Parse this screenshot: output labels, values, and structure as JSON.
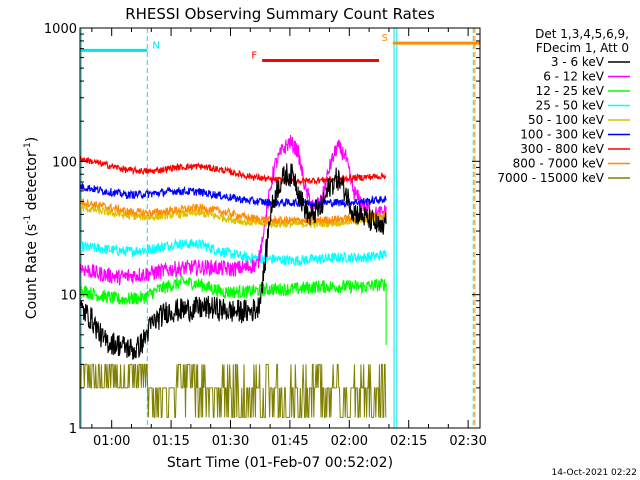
{
  "chart_data": {
    "type": "line",
    "title": "RHESSI Observing Summary Count Rates",
    "xlabel": "Start Time (01-Feb-07 00:52:02)",
    "ylabel_main": "Count Rate (s",
    "ylabel_sup1": "-1",
    "ylabel_mid": " detector",
    "ylabel_sup2": "-1",
    "ylabel_end": ")",
    "yscale": "log",
    "ylim": [
      1,
      1000
    ],
    "xlim_minutes": [
      52.0,
      153.0
    ],
    "x_ticks": [
      {
        "minute": 60,
        "label": "01:00"
      },
      {
        "minute": 75,
        "label": "01:15"
      },
      {
        "minute": 90,
        "label": "01:30"
      },
      {
        "minute": 105,
        "label": "01:45"
      },
      {
        "minute": 120,
        "label": "02:00"
      },
      {
        "minute": 135,
        "label": "02:15"
      },
      {
        "minute": 150,
        "label": "02:30"
      }
    ],
    "y_ticks": [
      {
        "value": 1,
        "label": "1"
      },
      {
        "value": 10,
        "label": "10"
      },
      {
        "value": 100,
        "label": "100"
      },
      {
        "value": 1000,
        "label": "1000"
      }
    ],
    "legend": {
      "header1": "Det 1,3,4,5,6,9,",
      "header2": "FDecim 1, Att 0",
      "placement": "right"
    },
    "annotations": [
      {
        "label": "N",
        "start": 52.0,
        "end": 69.0,
        "color": "#00e5e5",
        "level": 680
      },
      {
        "label": "F",
        "start": 98.0,
        "end": 127.5,
        "color": "#ff0000",
        "level": 570
      },
      {
        "label": "S",
        "start": 131.0,
        "end": 153.0,
        "color": "#ff8c00",
        "level": 770
      }
    ],
    "vertical_lines": [
      {
        "minute": 52.3,
        "color": "#00e5e5",
        "style": "solid"
      },
      {
        "minute": 69.0,
        "color": "#00e5e5",
        "style": "dashed"
      },
      {
        "minute": 131.3,
        "color": "#00e5e5",
        "style": "solid"
      },
      {
        "minute": 132.0,
        "color": "#00e5e5",
        "style": "solid"
      },
      {
        "minute": 151.3,
        "color": "#00e5e5",
        "style": "dashed"
      },
      {
        "minute": 151.7,
        "color": "#ff8c00",
        "style": "dashed"
      }
    ],
    "series": [
      {
        "name": "3 - 6 keV",
        "color": "#000000",
        "end": 129.3,
        "noise": 0.09,
        "points": [
          [
            52,
            8
          ],
          [
            55,
            6.5
          ],
          [
            58,
            4.5
          ],
          [
            62,
            4.2
          ],
          [
            66,
            3.8
          ],
          [
            68,
            4.5
          ],
          [
            70,
            6
          ],
          [
            74,
            7.5
          ],
          [
            80,
            7.8
          ],
          [
            85,
            8
          ],
          [
            90,
            7.5
          ],
          [
            95,
            7.5
          ],
          [
            97,
            8
          ],
          [
            98.5,
            15
          ],
          [
            100,
            40
          ],
          [
            102,
            65
          ],
          [
            104,
            80
          ],
          [
            106,
            78
          ],
          [
            108,
            50
          ],
          [
            110,
            38
          ],
          [
            113,
            45
          ],
          [
            115,
            65
          ],
          [
            117,
            75
          ],
          [
            119,
            60
          ],
          [
            121,
            42
          ],
          [
            124,
            38
          ],
          [
            126,
            35
          ],
          [
            127.5,
            32
          ],
          [
            128.5,
            30
          ],
          [
            129.3,
            40
          ]
        ]
      },
      {
        "name": "6 - 12 keV",
        "color": "#ff00ff",
        "end": 129.3,
        "noise": 0.06,
        "points": [
          [
            52,
            16
          ],
          [
            56,
            14.5
          ],
          [
            62,
            13.5
          ],
          [
            66,
            14
          ],
          [
            70,
            14.5
          ],
          [
            75,
            15.5
          ],
          [
            80,
            16
          ],
          [
            85,
            16
          ],
          [
            90,
            15.5
          ],
          [
            94,
            16
          ],
          [
            97,
            17
          ],
          [
            99,
            40
          ],
          [
            101,
            90
          ],
          [
            103,
            120
          ],
          [
            105,
            140
          ],
          [
            107,
            120
          ],
          [
            109,
            60
          ],
          [
            111,
            45
          ],
          [
            113,
            50
          ],
          [
            115,
            90
          ],
          [
            117,
            130
          ],
          [
            119,
            110
          ],
          [
            121,
            60
          ],
          [
            124,
            45
          ],
          [
            127,
            40
          ],
          [
            129.3,
            42
          ]
        ]
      },
      {
        "name": "12 - 25 keV",
        "color": "#00ff00",
        "end": 129.3,
        "noise": 0.05,
        "tail": [
          [
            129.3,
            4.2
          ]
        ],
        "points": [
          [
            52,
            11
          ],
          [
            56,
            10
          ],
          [
            62,
            9.2
          ],
          [
            68,
            9.5
          ],
          [
            72,
            11
          ],
          [
            78,
            12.5
          ],
          [
            82,
            12
          ],
          [
            88,
            10.5
          ],
          [
            94,
            10.5
          ],
          [
            100,
            11
          ],
          [
            106,
            11
          ],
          [
            112,
            11.5
          ],
          [
            118,
            11.5
          ],
          [
            124,
            11.5
          ],
          [
            129.3,
            12
          ]
        ]
      },
      {
        "name": "25 - 50 keV",
        "color": "#00ffff",
        "end": 129.3,
        "noise": 0.04,
        "points": [
          [
            52,
            23
          ],
          [
            58,
            22
          ],
          [
            64,
            21
          ],
          [
            70,
            22
          ],
          [
            76,
            24
          ],
          [
            82,
            24
          ],
          [
            88,
            21
          ],
          [
            94,
            19
          ],
          [
            100,
            18.5
          ],
          [
            106,
            18
          ],
          [
            112,
            18.5
          ],
          [
            118,
            19
          ],
          [
            124,
            19
          ],
          [
            129.3,
            20
          ]
        ]
      },
      {
        "name": "50 - 100 keV",
        "color": "#e0c000",
        "end": 129.3,
        "noise": 0.03,
        "points": [
          [
            52,
            45
          ],
          [
            58,
            42
          ],
          [
            64,
            39
          ],
          [
            70,
            38
          ],
          [
            76,
            40
          ],
          [
            82,
            41
          ],
          [
            88,
            38
          ],
          [
            94,
            35
          ],
          [
            100,
            34
          ],
          [
            106,
            34
          ],
          [
            112,
            34
          ],
          [
            118,
            35
          ],
          [
            124,
            36
          ],
          [
            129.3,
            38
          ]
        ]
      },
      {
        "name": "100 - 300 keV",
        "color": "#0000ff",
        "end": 129.3,
        "noise": 0.03,
        "points": [
          [
            52,
            65
          ],
          [
            58,
            60
          ],
          [
            64,
            56
          ],
          [
            70,
            57
          ],
          [
            76,
            60
          ],
          [
            82,
            59
          ],
          [
            88,
            55
          ],
          [
            94,
            51
          ],
          [
            100,
            49
          ],
          [
            106,
            49
          ],
          [
            112,
            49
          ],
          [
            118,
            49
          ],
          [
            124,
            50
          ],
          [
            129.3,
            52
          ]
        ]
      },
      {
        "name": "300 - 800 keV",
        "color": "#ff0000",
        "end": 129.3,
        "noise": 0.025,
        "points": [
          [
            52,
            105
          ],
          [
            58,
            95
          ],
          [
            64,
            86
          ],
          [
            70,
            84
          ],
          [
            76,
            90
          ],
          [
            82,
            92
          ],
          [
            88,
            86
          ],
          [
            94,
            78
          ],
          [
            100,
            73
          ],
          [
            106,
            71
          ],
          [
            112,
            72
          ],
          [
            118,
            74
          ],
          [
            124,
            76
          ],
          [
            129.3,
            78
          ]
        ]
      },
      {
        "name": "800 - 7000 keV",
        "color": "#ff8c00",
        "end": 129.3,
        "noise": 0.03,
        "points": [
          [
            52,
            50
          ],
          [
            58,
            46
          ],
          [
            64,
            42
          ],
          [
            70,
            41
          ],
          [
            76,
            43
          ],
          [
            82,
            45
          ],
          [
            88,
            42
          ],
          [
            94,
            38
          ],
          [
            100,
            36
          ],
          [
            106,
            36
          ],
          [
            112,
            36
          ],
          [
            118,
            37
          ],
          [
            124,
            38
          ],
          [
            129.3,
            40
          ]
        ]
      },
      {
        "name": "7000 - 15000 keV",
        "color": "#808000",
        "end": 129.3,
        "noise": 0,
        "points": [
          [
            52,
            2
          ],
          [
            129.3,
            2
          ]
        ]
      }
    ]
  }
}
